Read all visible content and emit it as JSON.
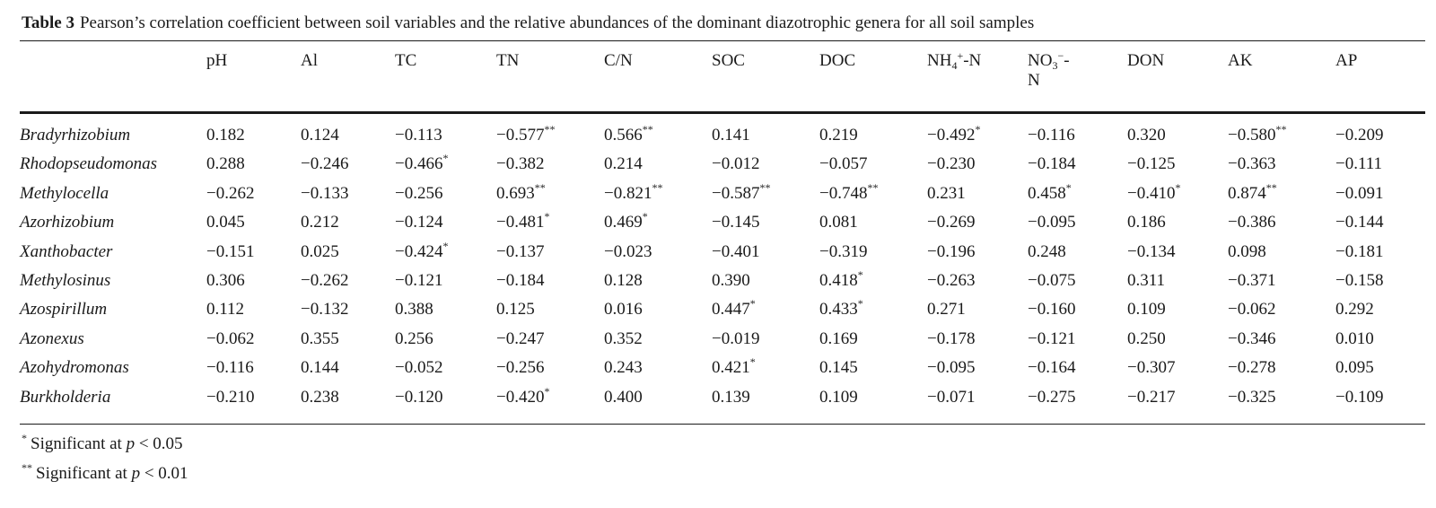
{
  "title": {
    "label": "Table 3",
    "text": "Pearson’s correlation coefficient between soil variables and the relative abundances of the dominant diazotrophic genera for all soil samples"
  },
  "columns": [
    {
      "label": "pH"
    },
    {
      "label": "Al"
    },
    {
      "label": "TC"
    },
    {
      "label": "TN"
    },
    {
      "label": "C/N"
    },
    {
      "label": "SOC"
    },
    {
      "label": "DOC"
    },
    {
      "label": "NH4+-N",
      "base": "NH",
      "sub": "4",
      "sup": "+",
      "tail": "-N"
    },
    {
      "label": "NO3−-N",
      "base": "NO",
      "sub": "3",
      "sup": "−",
      "tail": "-",
      "tail2": "N"
    },
    {
      "label": "DON"
    },
    {
      "label": "AK"
    },
    {
      "label": "AP"
    }
  ],
  "rows": [
    {
      "genus": "Bradyrhizobium",
      "cells": [
        {
          "v": "0.182",
          "s": ""
        },
        {
          "v": "0.124",
          "s": ""
        },
        {
          "v": "−0.113",
          "s": ""
        },
        {
          "v": "−0.577",
          "s": "**"
        },
        {
          "v": "0.566",
          "s": "**"
        },
        {
          "v": "0.141",
          "s": ""
        },
        {
          "v": "0.219",
          "s": ""
        },
        {
          "v": "−0.492",
          "s": "*"
        },
        {
          "v": "−0.116",
          "s": ""
        },
        {
          "v": "0.320",
          "s": ""
        },
        {
          "v": "−0.580",
          "s": "**"
        },
        {
          "v": "−0.209",
          "s": ""
        }
      ]
    },
    {
      "genus": "Rhodopseudomonas",
      "cells": [
        {
          "v": "0.288",
          "s": ""
        },
        {
          "v": "−0.246",
          "s": ""
        },
        {
          "v": "−0.466",
          "s": "*"
        },
        {
          "v": "−0.382",
          "s": ""
        },
        {
          "v": "0.214",
          "s": ""
        },
        {
          "v": "−0.012",
          "s": ""
        },
        {
          "v": "−0.057",
          "s": ""
        },
        {
          "v": "−0.230",
          "s": ""
        },
        {
          "v": "−0.184",
          "s": ""
        },
        {
          "v": "−0.125",
          "s": ""
        },
        {
          "v": "−0.363",
          "s": ""
        },
        {
          "v": "−0.111",
          "s": ""
        }
      ]
    },
    {
      "genus": "Methylocella",
      "cells": [
        {
          "v": "−0.262",
          "s": ""
        },
        {
          "v": "−0.133",
          "s": ""
        },
        {
          "v": "−0.256",
          "s": ""
        },
        {
          "v": "0.693",
          "s": "**"
        },
        {
          "v": "−0.821",
          "s": "**"
        },
        {
          "v": "−0.587",
          "s": "**"
        },
        {
          "v": "−0.748",
          "s": "**"
        },
        {
          "v": "0.231",
          "s": ""
        },
        {
          "v": "0.458",
          "s": "*"
        },
        {
          "v": "−0.410",
          "s": "*"
        },
        {
          "v": "0.874",
          "s": "**"
        },
        {
          "v": "−0.091",
          "s": ""
        }
      ]
    },
    {
      "genus": "Azorhizobium",
      "cells": [
        {
          "v": "0.045",
          "s": ""
        },
        {
          "v": "0.212",
          "s": ""
        },
        {
          "v": "−0.124",
          "s": ""
        },
        {
          "v": "−0.481",
          "s": "*"
        },
        {
          "v": "0.469",
          "s": "*"
        },
        {
          "v": "−0.145",
          "s": ""
        },
        {
          "v": "0.081",
          "s": ""
        },
        {
          "v": "−0.269",
          "s": ""
        },
        {
          "v": "−0.095",
          "s": ""
        },
        {
          "v": "0.186",
          "s": ""
        },
        {
          "v": "−0.386",
          "s": ""
        },
        {
          "v": "−0.144",
          "s": ""
        }
      ]
    },
    {
      "genus": "Xanthobacter",
      "cells": [
        {
          "v": "−0.151",
          "s": ""
        },
        {
          "v": "0.025",
          "s": ""
        },
        {
          "v": "−0.424",
          "s": "*"
        },
        {
          "v": "−0.137",
          "s": ""
        },
        {
          "v": "−0.023",
          "s": ""
        },
        {
          "v": "−0.401",
          "s": ""
        },
        {
          "v": "−0.319",
          "s": ""
        },
        {
          "v": "−0.196",
          "s": ""
        },
        {
          "v": "0.248",
          "s": ""
        },
        {
          "v": "−0.134",
          "s": ""
        },
        {
          "v": "0.098",
          "s": ""
        },
        {
          "v": "−0.181",
          "s": ""
        }
      ]
    },
    {
      "genus": "Methylosinus",
      "cells": [
        {
          "v": "0.306",
          "s": ""
        },
        {
          "v": "−0.262",
          "s": ""
        },
        {
          "v": "−0.121",
          "s": ""
        },
        {
          "v": "−0.184",
          "s": ""
        },
        {
          "v": "0.128",
          "s": ""
        },
        {
          "v": "0.390",
          "s": ""
        },
        {
          "v": "0.418",
          "s": "*"
        },
        {
          "v": "−0.263",
          "s": ""
        },
        {
          "v": "−0.075",
          "s": ""
        },
        {
          "v": "0.311",
          "s": ""
        },
        {
          "v": "−0.371",
          "s": ""
        },
        {
          "v": "−0.158",
          "s": ""
        }
      ]
    },
    {
      "genus": "Azospirillum",
      "cells": [
        {
          "v": "0.112",
          "s": ""
        },
        {
          "v": "−0.132",
          "s": ""
        },
        {
          "v": "0.388",
          "s": ""
        },
        {
          "v": "0.125",
          "s": ""
        },
        {
          "v": "0.016",
          "s": ""
        },
        {
          "v": "0.447",
          "s": "*"
        },
        {
          "v": "0.433",
          "s": "*"
        },
        {
          "v": "0.271",
          "s": ""
        },
        {
          "v": "−0.160",
          "s": ""
        },
        {
          "v": "0.109",
          "s": ""
        },
        {
          "v": "−0.062",
          "s": ""
        },
        {
          "v": "0.292",
          "s": ""
        }
      ]
    },
    {
      "genus": "Azonexus",
      "cells": [
        {
          "v": "−0.062",
          "s": ""
        },
        {
          "v": "0.355",
          "s": ""
        },
        {
          "v": "0.256",
          "s": ""
        },
        {
          "v": "−0.247",
          "s": ""
        },
        {
          "v": "0.352",
          "s": ""
        },
        {
          "v": "−0.019",
          "s": ""
        },
        {
          "v": "0.169",
          "s": ""
        },
        {
          "v": "−0.178",
          "s": ""
        },
        {
          "v": "−0.121",
          "s": ""
        },
        {
          "v": "0.250",
          "s": ""
        },
        {
          "v": "−0.346",
          "s": ""
        },
        {
          "v": "0.010",
          "s": ""
        }
      ]
    },
    {
      "genus": "Azohydromonas",
      "cells": [
        {
          "v": "−0.116",
          "s": ""
        },
        {
          "v": "0.144",
          "s": ""
        },
        {
          "v": "−0.052",
          "s": ""
        },
        {
          "v": "−0.256",
          "s": ""
        },
        {
          "v": "0.243",
          "s": ""
        },
        {
          "v": "0.421",
          "s": "*"
        },
        {
          "v": "0.145",
          "s": ""
        },
        {
          "v": "−0.095",
          "s": ""
        },
        {
          "v": "−0.164",
          "s": ""
        },
        {
          "v": "−0.307",
          "s": ""
        },
        {
          "v": "−0.278",
          "s": ""
        },
        {
          "v": "0.095",
          "s": ""
        }
      ]
    },
    {
      "genus": "Burkholderia",
      "cells": [
        {
          "v": "−0.210",
          "s": ""
        },
        {
          "v": "0.238",
          "s": ""
        },
        {
          "v": "−0.120",
          "s": ""
        },
        {
          "v": "−0.420",
          "s": "*"
        },
        {
          "v": "0.400",
          "s": ""
        },
        {
          "v": "0.139",
          "s": ""
        },
        {
          "v": "0.109",
          "s": ""
        },
        {
          "v": "−0.071",
          "s": ""
        },
        {
          "v": "−0.275",
          "s": ""
        },
        {
          "v": "−0.217",
          "s": ""
        },
        {
          "v": "−0.325",
          "s": ""
        },
        {
          "v": "−0.109",
          "s": ""
        }
      ]
    }
  ],
  "footnotes": [
    {
      "mark": "*",
      "text": "Significant at ",
      "var": "p",
      "rel": " < 0.05"
    },
    {
      "mark": "**",
      "text": "Significant at ",
      "var": "p",
      "rel": " < 0.01"
    }
  ]
}
